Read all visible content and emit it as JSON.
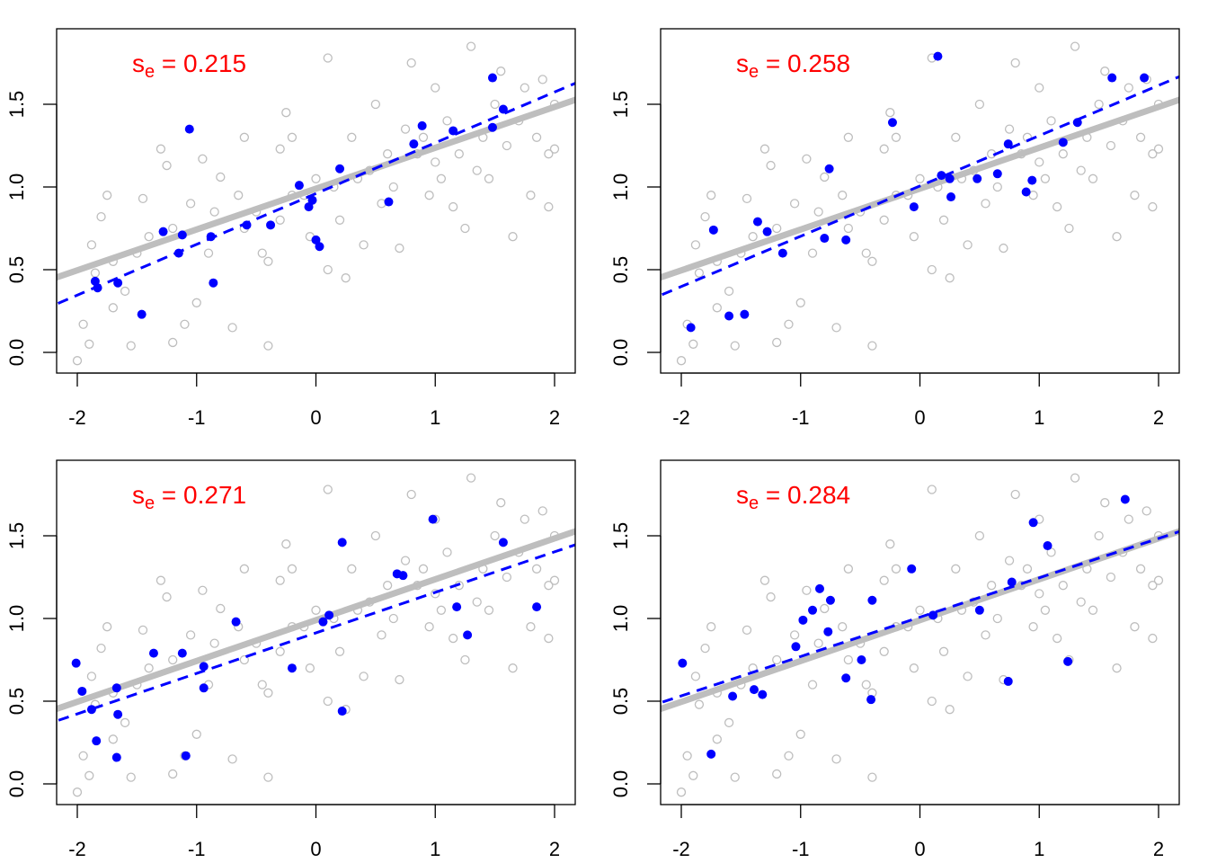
{
  "chart_data": [
    {
      "type": "scatter",
      "label_prefix": "s",
      "label_subscript": "e",
      "label_eq": " = ",
      "label_value": "0.215",
      "xlim": [
        -2.2,
        2.2
      ],
      "ylim": [
        -0.1,
        1.95
      ],
      "xticks": [
        "-2",
        "-1",
        "0",
        "1",
        "2"
      ],
      "yticks": [
        "0.0",
        "0.5",
        "1.0",
        "1.5"
      ],
      "grid": false,
      "population_line": {
        "intercept": 0.99,
        "slope": 0.247
      },
      "sample_line": {
        "intercept": 0.96,
        "slope": 0.307
      },
      "sample_points": [
        [
          -1.85,
          0.43
        ],
        [
          -1.83,
          0.39
        ],
        [
          -1.66,
          0.42
        ],
        [
          -1.46,
          0.23
        ],
        [
          -1.28,
          0.73
        ],
        [
          -1.15,
          0.6
        ],
        [
          -1.12,
          0.71
        ],
        [
          -1.06,
          1.35
        ],
        [
          -0.88,
          0.7
        ],
        [
          -0.86,
          0.42
        ],
        [
          -0.58,
          0.77
        ],
        [
          -0.38,
          0.77
        ],
        [
          -0.14,
          1.01
        ],
        [
          -0.06,
          0.88
        ],
        [
          -0.03,
          0.92
        ],
        [
          0.0,
          0.68
        ],
        [
          0.03,
          0.64
        ],
        [
          0.2,
          1.11
        ],
        [
          0.61,
          0.91
        ],
        [
          0.82,
          1.26
        ],
        [
          0.89,
          1.37
        ],
        [
          1.15,
          1.34
        ],
        [
          1.48,
          1.36
        ],
        [
          1.48,
          1.66
        ],
        [
          1.57,
          1.47
        ]
      ]
    },
    {
      "type": "scatter",
      "label_prefix": "s",
      "label_subscript": "e",
      "label_eq": " = ",
      "label_value": "0.258",
      "xlim": [
        -2.2,
        2.2
      ],
      "ylim": [
        -0.1,
        1.95
      ],
      "xticks": [
        "-2",
        "-1",
        "0",
        "1",
        "2"
      ],
      "yticks": [
        "0.0",
        "0.5",
        "1.0",
        "1.5"
      ],
      "grid": false,
      "population_line": {
        "intercept": 0.99,
        "slope": 0.247
      },
      "sample_line": {
        "intercept": 1.006,
        "slope": 0.304
      },
      "sample_points": [
        [
          -1.92,
          0.15
        ],
        [
          -1.73,
          0.74
        ],
        [
          -1.6,
          0.22
        ],
        [
          -1.47,
          0.23
        ],
        [
          -1.36,
          0.79
        ],
        [
          -1.28,
          0.73
        ],
        [
          -1.15,
          0.6
        ],
        [
          -0.8,
          0.69
        ],
        [
          -0.76,
          1.11
        ],
        [
          -0.62,
          0.68
        ],
        [
          -0.23,
          1.39
        ],
        [
          -0.05,
          0.88
        ],
        [
          0.15,
          1.79
        ],
        [
          0.18,
          1.07
        ],
        [
          0.25,
          1.05
        ],
        [
          0.26,
          0.94
        ],
        [
          0.48,
          1.05
        ],
        [
          0.65,
          1.08
        ],
        [
          0.74,
          1.26
        ],
        [
          0.89,
          0.97
        ],
        [
          0.94,
          1.04
        ],
        [
          1.2,
          1.27
        ],
        [
          1.32,
          1.39
        ],
        [
          1.61,
          1.66
        ],
        [
          1.88,
          1.66
        ]
      ]
    },
    {
      "type": "scatter",
      "label_prefix": "s",
      "label_subscript": "e",
      "label_eq": " = ",
      "label_value": "0.271",
      "xlim": [
        -2.2,
        2.2
      ],
      "ylim": [
        -0.1,
        1.95
      ],
      "xticks": [
        "-2",
        "-1",
        "0",
        "1",
        "2"
      ],
      "yticks": [
        "0.0",
        "0.5",
        "1.0",
        "1.5"
      ],
      "grid": false,
      "population_line": {
        "intercept": 0.99,
        "slope": 0.247
      },
      "sample_line": {
        "intercept": 0.913,
        "slope": 0.245
      },
      "sample_points": [
        [
          -2.01,
          0.73
        ],
        [
          -1.96,
          0.56
        ],
        [
          -1.88,
          0.45
        ],
        [
          -1.84,
          0.26
        ],
        [
          -1.67,
          0.58
        ],
        [
          -1.66,
          0.42
        ],
        [
          -1.67,
          0.16
        ],
        [
          -1.36,
          0.79
        ],
        [
          -1.12,
          0.79
        ],
        [
          -1.09,
          0.17
        ],
        [
          -0.94,
          0.71
        ],
        [
          -0.94,
          0.58
        ],
        [
          -0.67,
          0.98
        ],
        [
          -0.2,
          0.7
        ],
        [
          0.06,
          0.98
        ],
        [
          0.11,
          1.02
        ],
        [
          0.22,
          1.46
        ],
        [
          0.22,
          0.44
        ],
        [
          0.68,
          1.27
        ],
        [
          0.73,
          1.26
        ],
        [
          0.98,
          1.6
        ],
        [
          1.18,
          1.07
        ],
        [
          1.27,
          0.9
        ],
        [
          1.57,
          1.46
        ],
        [
          1.85,
          1.07
        ]
      ]
    },
    {
      "type": "scatter",
      "label_prefix": "s",
      "label_subscript": "e",
      "label_eq": " = ",
      "label_value": "0.284",
      "xlim": [
        -2.2,
        2.2
      ],
      "ylim": [
        -0.1,
        1.95
      ],
      "xticks": [
        "-2",
        "-1",
        "0",
        "1",
        "2"
      ],
      "yticks": [
        "0.0",
        "0.5",
        "1.0",
        "1.5"
      ],
      "grid": false,
      "population_line": {
        "intercept": 0.99,
        "slope": 0.247
      },
      "sample_line": {
        "intercept": 1.008,
        "slope": 0.238
      },
      "sample_points": [
        [
          -1.99,
          0.73
        ],
        [
          -1.75,
          0.18
        ],
        [
          -1.57,
          0.53
        ],
        [
          -1.39,
          0.57
        ],
        [
          -1.32,
          0.54
        ],
        [
          -1.04,
          0.83
        ],
        [
          -0.98,
          0.99
        ],
        [
          -0.9,
          1.05
        ],
        [
          -0.84,
          1.18
        ],
        [
          -0.77,
          0.92
        ],
        [
          -0.75,
          1.11
        ],
        [
          -0.62,
          0.64
        ],
        [
          -0.49,
          0.75
        ],
        [
          -0.4,
          1.11
        ],
        [
          -0.41,
          0.51
        ],
        [
          -0.07,
          1.3
        ],
        [
          0.11,
          1.02
        ],
        [
          0.5,
          1.05
        ],
        [
          0.74,
          0.62
        ],
        [
          0.77,
          1.22
        ],
        [
          0.95,
          1.58
        ],
        [
          1.07,
          1.44
        ],
        [
          1.24,
          0.74
        ],
        [
          1.72,
          1.72
        ]
      ]
    }
  ],
  "population_points": [
    [
      -2.0,
      -0.05
    ],
    [
      -1.95,
      0.17
    ],
    [
      -1.9,
      0.05
    ],
    [
      -1.88,
      0.65
    ],
    [
      -1.85,
      0.48
    ],
    [
      -1.8,
      0.82
    ],
    [
      -1.75,
      0.95
    ],
    [
      -1.7,
      0.27
    ],
    [
      -1.7,
      0.55
    ],
    [
      -1.6,
      0.37
    ],
    [
      -1.55,
      0.04
    ],
    [
      -1.5,
      0.6
    ],
    [
      -1.45,
      0.93
    ],
    [
      -1.4,
      0.7
    ],
    [
      -1.3,
      1.23
    ],
    [
      -1.25,
      1.13
    ],
    [
      -1.2,
      0.06
    ],
    [
      -1.2,
      0.75
    ],
    [
      -1.1,
      0.17
    ],
    [
      -1.05,
      0.9
    ],
    [
      -1.0,
      0.3
    ],
    [
      -0.95,
      1.17
    ],
    [
      -0.9,
      0.6
    ],
    [
      -0.85,
      0.85
    ],
    [
      -0.8,
      1.06
    ],
    [
      -0.7,
      0.15
    ],
    [
      -0.65,
      0.95
    ],
    [
      -0.6,
      1.3
    ],
    [
      -0.6,
      0.75
    ],
    [
      -0.5,
      0.85
    ],
    [
      -0.45,
      0.6
    ],
    [
      -0.4,
      0.04
    ],
    [
      -0.4,
      0.55
    ],
    [
      -0.3,
      1.23
    ],
    [
      -0.3,
      0.8
    ],
    [
      -0.25,
      1.45
    ],
    [
      -0.2,
      1.3
    ],
    [
      -0.2,
      0.95
    ],
    [
      -0.1,
      0.95
    ],
    [
      -0.05,
      0.7
    ],
    [
      0.0,
      1.05
    ],
    [
      0.1,
      1.78
    ],
    [
      0.1,
      0.5
    ],
    [
      0.15,
      1.0
    ],
    [
      0.2,
      0.8
    ],
    [
      0.25,
      0.45
    ],
    [
      0.3,
      1.3
    ],
    [
      0.35,
      1.05
    ],
    [
      0.4,
      0.65
    ],
    [
      0.45,
      1.1
    ],
    [
      0.5,
      1.5
    ],
    [
      0.55,
      0.9
    ],
    [
      0.6,
      1.2
    ],
    [
      0.65,
      1.0
    ],
    [
      0.7,
      0.63
    ],
    [
      0.75,
      1.35
    ],
    [
      0.8,
      1.75
    ],
    [
      0.85,
      1.2
    ],
    [
      0.9,
      1.3
    ],
    [
      0.95,
      0.95
    ],
    [
      1.0,
      1.6
    ],
    [
      1.0,
      1.15
    ],
    [
      1.05,
      1.05
    ],
    [
      1.1,
      1.4
    ],
    [
      1.15,
      0.88
    ],
    [
      1.2,
      1.2
    ],
    [
      1.25,
      0.75
    ],
    [
      1.3,
      1.85
    ],
    [
      1.35,
      1.1
    ],
    [
      1.4,
      1.3
    ],
    [
      1.45,
      1.05
    ],
    [
      1.5,
      1.5
    ],
    [
      1.55,
      1.7
    ],
    [
      1.6,
      1.25
    ],
    [
      1.65,
      0.7
    ],
    [
      1.7,
      1.4
    ],
    [
      1.75,
      1.6
    ],
    [
      1.8,
      0.95
    ],
    [
      1.85,
      1.3
    ],
    [
      1.9,
      1.65
    ],
    [
      1.95,
      1.2
    ],
    [
      1.95,
      0.88
    ],
    [
      2.0,
      1.5
    ],
    [
      2.0,
      1.23
    ]
  ],
  "colors": {
    "population": "#bebebe",
    "sample": "#0000ff",
    "label": "#ff0000"
  }
}
